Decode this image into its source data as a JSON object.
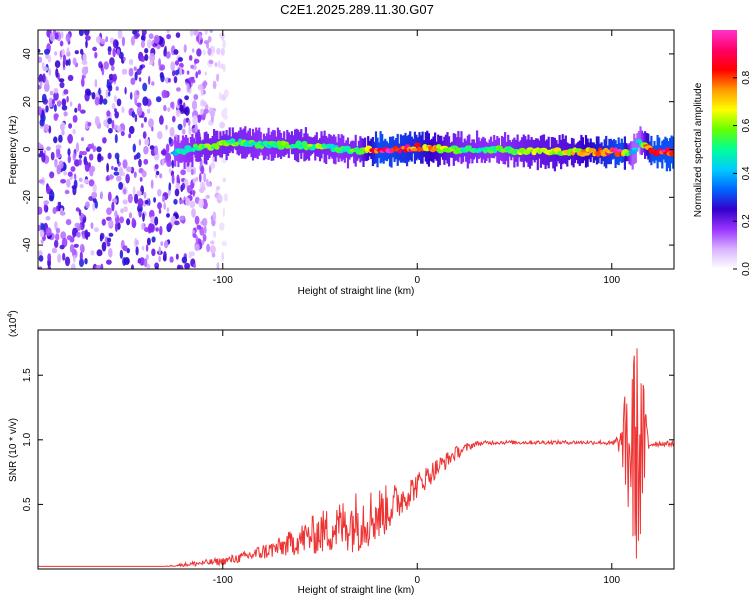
{
  "figure": {
    "title": "C2E1.2025.289.11.30.G07"
  },
  "chart_data": [
    {
      "type": "heatmap",
      "name": "spectrogram",
      "xlabel": "Height of straight line (km)",
      "ylabel": "Frequency (Hz)",
      "xlim": [
        -195,
        132
      ],
      "ylim": [
        -50,
        50
      ],
      "x_ticks": [
        -100,
        0,
        100
      ],
      "y_ticks": [
        -40,
        -20,
        0,
        20,
        40
      ],
      "colorbar": {
        "label": "Normalized spectral amplitude",
        "range": [
          0.0,
          1.0
        ],
        "ticks": [
          0.0,
          0.2,
          0.4,
          0.6,
          0.8
        ],
        "tick_labels": [
          "0.0",
          "0.2",
          "0.4",
          "0.6",
          "0.8"
        ],
        "colors": [
          "#ffffff",
          "#d9b3ff",
          "#9933ff",
          "#3300cc",
          "#0066ff",
          "#00ccff",
          "#00ff99",
          "#66ff00",
          "#ffff00",
          "#ff9900",
          "#ff0000",
          "#ff0066",
          "#ff33cc"
        ]
      },
      "noise_region": {
        "x_range": [
          -195,
          -120
        ],
        "freq_range": [
          -50,
          50
        ],
        "amplitude": 0.25
      },
      "ridge": {
        "description": "central frequency ridge",
        "x": [
          -125,
          -110,
          -95,
          -80,
          -65,
          -50,
          -40,
          -30,
          -20,
          -10,
          0,
          20,
          40,
          60,
          80,
          95,
          105,
          110,
          114,
          120,
          132
        ],
        "center_hz": [
          -1,
          1,
          3,
          2,
          2,
          1,
          0,
          -1,
          0,
          0,
          1,
          0,
          0,
          -1,
          -1,
          -1,
          -1,
          -2,
          4,
          -1,
          -1
        ],
        "amplitude": [
          0.45,
          0.55,
          0.55,
          0.5,
          0.55,
          0.55,
          0.5,
          0.55,
          0.9,
          0.85,
          0.8,
          0.55,
          0.5,
          0.6,
          0.65,
          0.8,
          0.9,
          0.4,
          0.4,
          0.9,
          0.9
        ]
      }
    },
    {
      "type": "line",
      "name": "snr",
      "xlabel": "Height of straight line (km)",
      "ylabel": "SNR (10 * v/v)",
      "y_scale_label": "(x10",
      "y_scale_exp": "4",
      "y_scale_close": ")",
      "xlim": [
        -195,
        132
      ],
      "ylim": [
        0,
        1.85
      ],
      "x_ticks": [
        -100,
        0,
        100
      ],
      "y_ticks": [
        0.5,
        1.0,
        1.5
      ],
      "y_tick_labels": [
        "0.5",
        "1.0",
        "1.5"
      ],
      "color": "#ee3333",
      "series": [
        {
          "name": "SNR",
          "x": [
            -195,
            -150,
            -130,
            -115,
            -100,
            -90,
            -80,
            -70,
            -60,
            -50,
            -40,
            -30,
            -20,
            -10,
            0,
            10,
            20,
            30,
            40,
            60,
            80,
            95,
            100,
            105,
            108,
            111,
            114,
            117,
            120,
            125,
            132
          ],
          "y": [
            0.02,
            0.02,
            0.02,
            0.04,
            0.06,
            0.09,
            0.13,
            0.17,
            0.23,
            0.28,
            0.33,
            0.38,
            0.42,
            0.52,
            0.65,
            0.78,
            0.9,
            0.97,
            0.98,
            0.98,
            0.98,
            0.98,
            0.97,
            0.98,
            0.95,
            0.9,
            0.9,
            0.95,
            0.97,
            0.97,
            0.97
          ],
          "spread": [
            0.0,
            0.0,
            0.0,
            0.02,
            0.03,
            0.04,
            0.06,
            0.08,
            0.12,
            0.17,
            0.2,
            0.25,
            0.22,
            0.15,
            0.1,
            0.08,
            0.05,
            0.02,
            0.015,
            0.015,
            0.015,
            0.015,
            0.02,
            0.1,
            0.6,
            0.85,
            0.9,
            0.4,
            0.03,
            0.02,
            0.02
          ]
        }
      ]
    }
  ]
}
